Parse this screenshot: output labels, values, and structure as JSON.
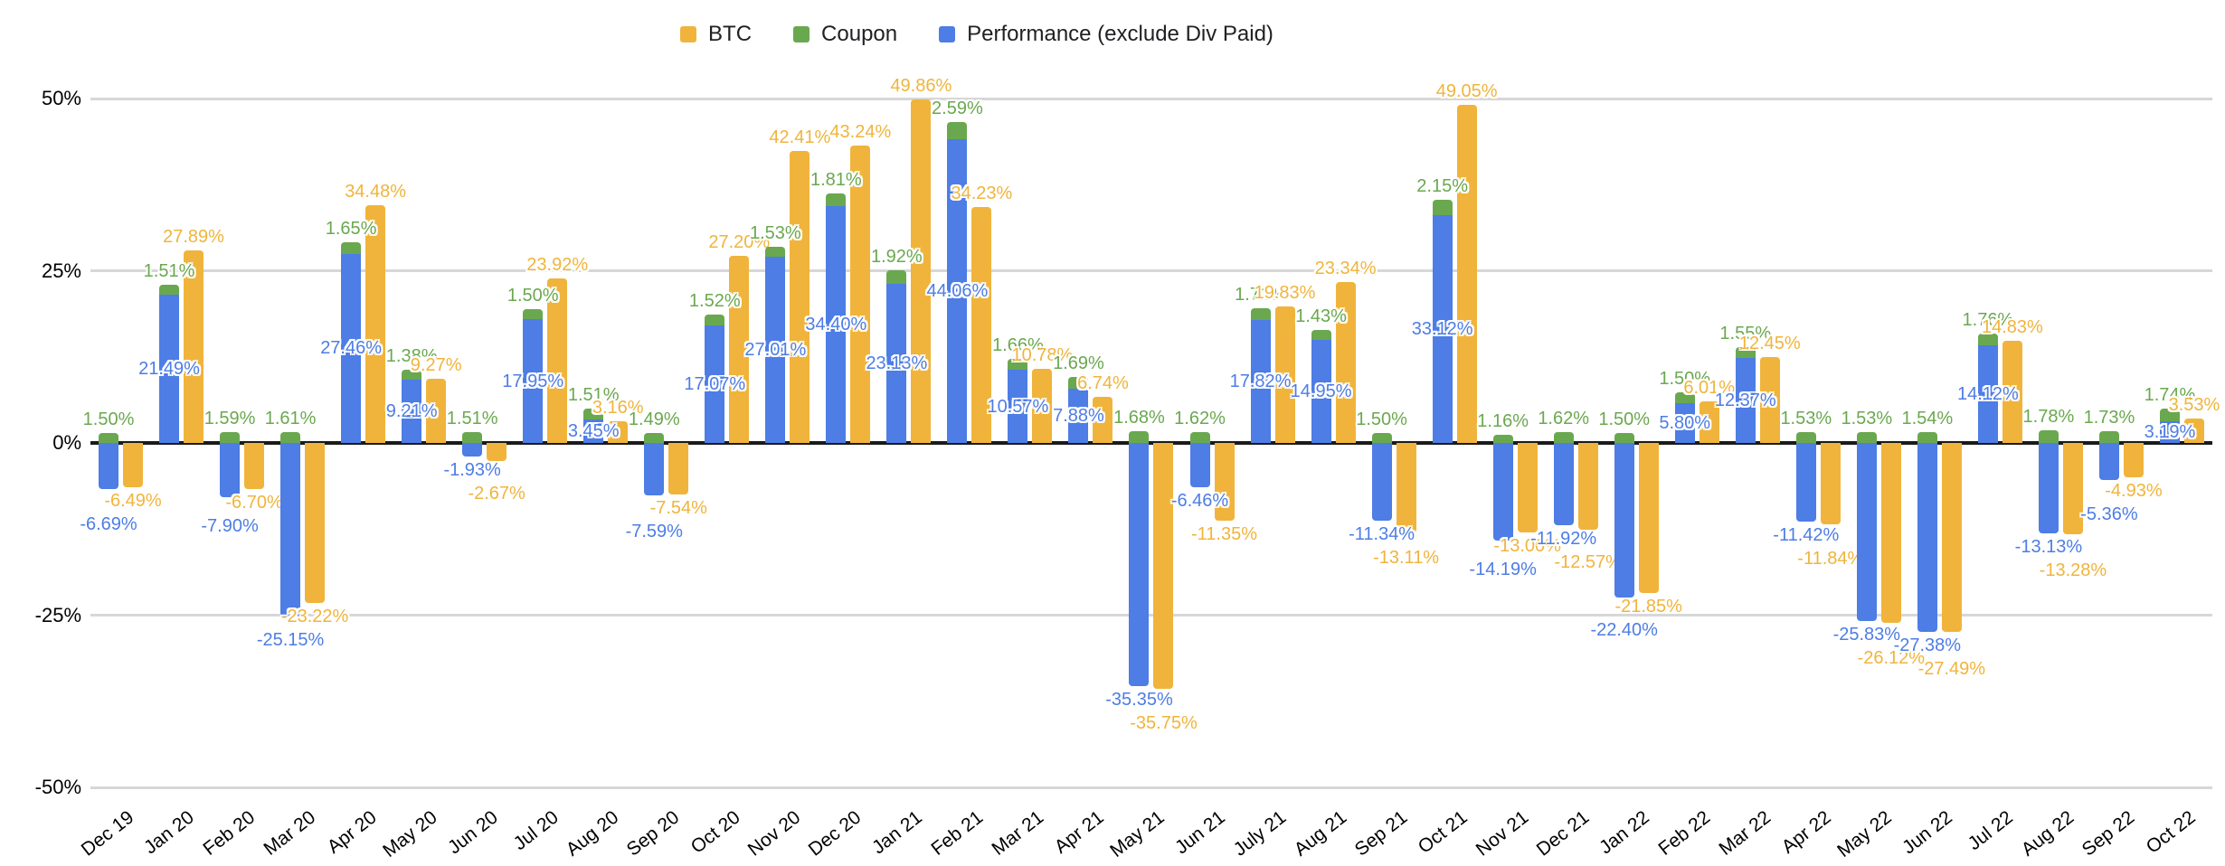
{
  "chart_data": {
    "type": "bar",
    "title": "",
    "subtitle": "",
    "xlabel": "",
    "ylabel": "",
    "ylim": [
      -50,
      50
    ],
    "yticks": [
      "50%",
      "25%",
      "0%",
      "-25%",
      "-50%"
    ],
    "ytick_values": [
      50,
      25,
      0,
      -25,
      -50
    ],
    "grid": true,
    "legend_position": "top-center",
    "label_format": "0.00%",
    "stacking": "Coupon is stacked on top of Performance (or above zero when Performance is negative); BTC is a separate adjacent bar",
    "categories": [
      "Dec 19",
      "Jan 20",
      "Feb 20",
      "Mar 20",
      "Apr 20",
      "May 20",
      "Jun 20",
      "Jul 20",
      "Aug 20",
      "Sep 20",
      "Oct 20",
      "Nov 20",
      "Dec 20",
      "Jan 21",
      "Feb 21",
      "Mar 21",
      "Apr 21",
      "May 21",
      "Jun 21",
      "July 21",
      "Aug 21",
      "Sep 21",
      "Oct 21",
      "Nov 21",
      "Dec 21",
      "Jan 22",
      "Feb 22",
      "Mar 22",
      "Apr 22",
      "May 22",
      "Jun 22",
      "Jul 22",
      "Aug 22",
      "Sep 22",
      "Oct 22"
    ],
    "series": [
      {
        "name": "BTC",
        "color": "#F0B43C",
        "values": [
          -6.49,
          27.89,
          -6.7,
          -23.22,
          34.48,
          9.27,
          -2.67,
          23.92,
          3.16,
          -7.54,
          27.2,
          42.41,
          43.24,
          49.86,
          34.23,
          10.78,
          6.74,
          -35.75,
          -11.35,
          19.83,
          23.34,
          -13.11,
          49.05,
          -13.0,
          -12.57,
          -21.85,
          6.01,
          12.45,
          -11.84,
          -26.12,
          -27.49,
          14.83,
          -13.28,
          -4.93,
          3.53
        ]
      },
      {
        "name": "Coupon",
        "color": "#6AA84F",
        "values": [
          1.5,
          1.51,
          1.59,
          1.61,
          1.65,
          1.38,
          1.51,
          1.5,
          1.51,
          1.49,
          1.52,
          1.53,
          1.81,
          1.92,
          2.59,
          1.66,
          1.69,
          1.68,
          1.62,
          1.71,
          1.43,
          1.5,
          2.15,
          1.16,
          1.62,
          1.5,
          1.5,
          1.55,
          1.53,
          1.53,
          1.54,
          1.76,
          1.78,
          1.73,
          1.74
        ]
      },
      {
        "name": "Performance (exclude Div Paid)",
        "color": "#4D7DE5",
        "values": [
          -6.69,
          21.49,
          -7.9,
          -25.15,
          27.46,
          9.21,
          -1.93,
          17.95,
          3.45,
          -7.59,
          17.07,
          27.01,
          34.4,
          23.13,
          44.06,
          10.57,
          7.88,
          -35.35,
          -6.46,
          17.82,
          14.95,
          -11.34,
          33.12,
          -14.19,
          -11.92,
          -22.4,
          5.8,
          12.37,
          -11.42,
          -25.83,
          -27.38,
          14.12,
          -13.13,
          -5.36,
          3.19
        ]
      }
    ]
  },
  "colors": {
    "background": "#ffffff",
    "gridline": "#d7d7d7",
    "zero_axis": "#1a1a1a",
    "axis_text": "#000000",
    "legend_text": "#202124"
  }
}
